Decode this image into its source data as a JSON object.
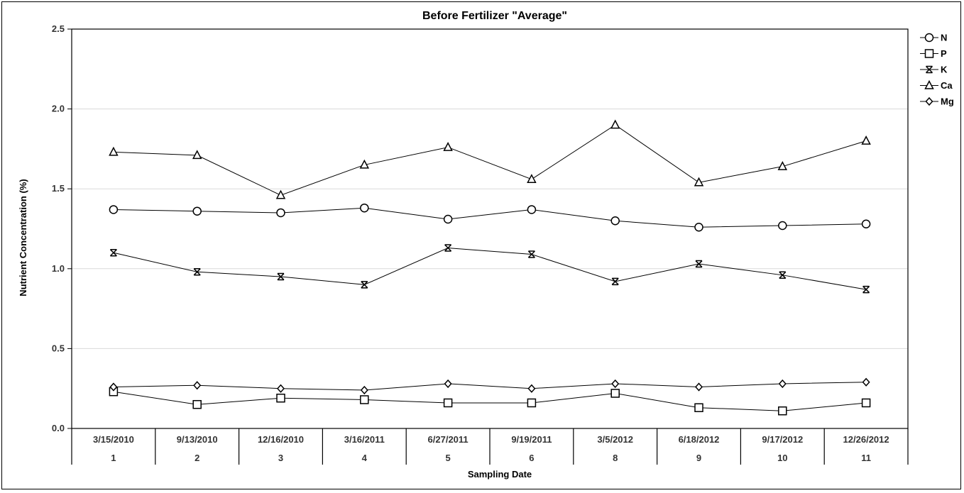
{
  "chart_data": {
    "type": "line",
    "title": "Before Fertilizer \"Average\"",
    "xlabel": "Sampling Date",
    "ylabel": "Nutrient Concentration (%)",
    "ylim": [
      0,
      2.5
    ],
    "yticks": [
      "0.0",
      "0.5",
      "1.0",
      "1.5",
      "2.0",
      "2.5"
    ],
    "grid": true,
    "legend_position": "right",
    "categories": [
      "3/15/2010",
      "9/13/2010",
      "12/16/2010",
      "3/16/2011",
      "6/27/2011",
      "9/19/2011",
      "3/5/2012",
      "6/18/2012",
      "9/17/2012",
      "12/26/2012"
    ],
    "category_numbers": [
      "1",
      "2",
      "3",
      "4",
      "5",
      "6",
      "8",
      "9",
      "10",
      "11"
    ],
    "series": [
      {
        "name": "N",
        "marker": "circle",
        "values": [
          1.37,
          1.36,
          1.35,
          1.38,
          1.31,
          1.37,
          1.3,
          1.26,
          1.27,
          1.28
        ]
      },
      {
        "name": "P",
        "marker": "square",
        "values": [
          0.23,
          0.15,
          0.19,
          0.18,
          0.16,
          0.16,
          0.22,
          0.13,
          0.11,
          0.16
        ]
      },
      {
        "name": "K",
        "marker": "asterisk",
        "values": [
          1.1,
          0.98,
          0.95,
          0.9,
          1.13,
          1.09,
          0.92,
          1.03,
          0.96,
          0.87
        ]
      },
      {
        "name": "Ca",
        "marker": "triangle",
        "values": [
          1.73,
          1.71,
          1.46,
          1.65,
          1.76,
          1.56,
          1.9,
          1.54,
          1.64,
          1.8
        ]
      },
      {
        "name": "Mg",
        "marker": "diamond",
        "values": [
          0.26,
          0.27,
          0.25,
          0.24,
          0.28,
          0.25,
          0.28,
          0.26,
          0.28,
          0.29
        ]
      }
    ]
  }
}
